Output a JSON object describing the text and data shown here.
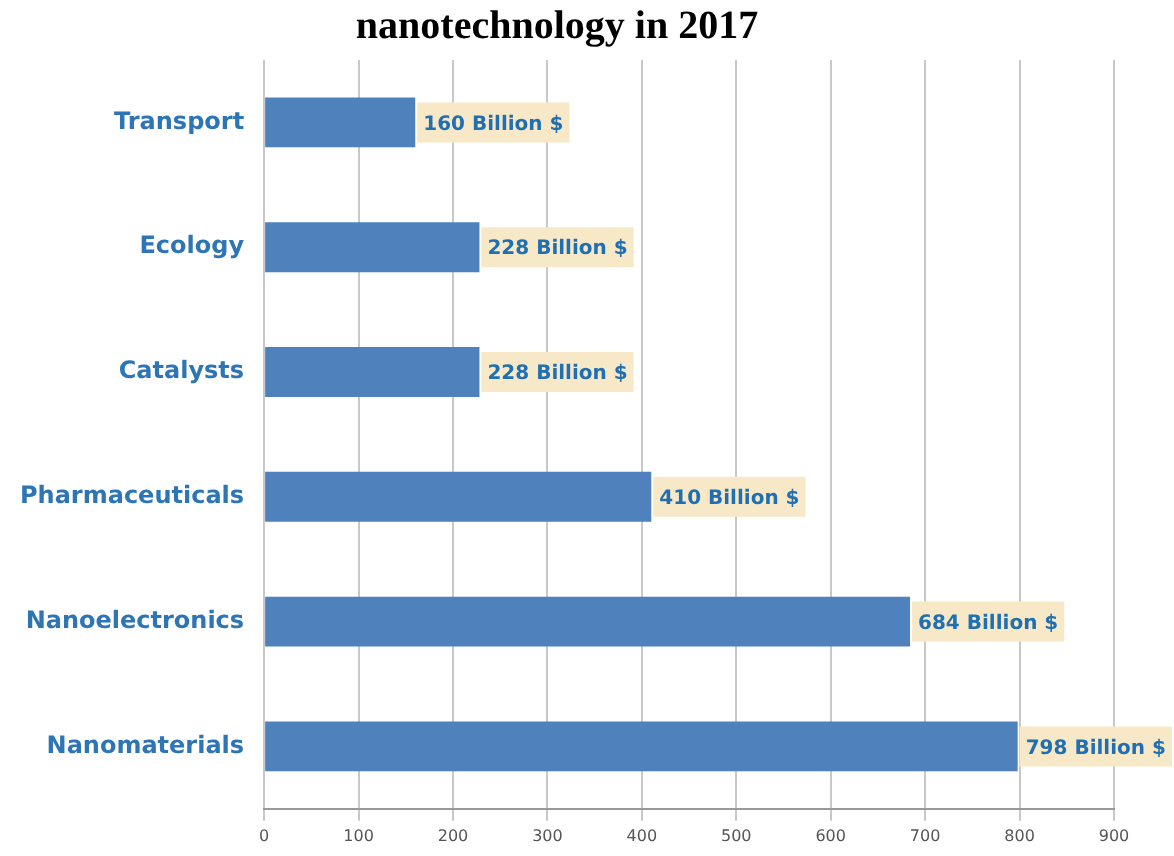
{
  "chart_data": {
    "type": "bar",
    "orientation": "horizontal",
    "title": "nanotechnology in 2017",
    "categories": [
      "Transport",
      "Ecology",
      "Catalysts",
      "Pharmaceuticals",
      "Nanoelectronics",
      "Nanomaterials"
    ],
    "values": [
      160,
      228,
      228,
      410,
      684,
      798
    ],
    "value_labels": [
      "160 Billion $",
      "228 Billion $",
      "228 Billion $",
      "410 Billion $",
      "684 Billion $",
      "798 Billion $"
    ],
    "color": "#4f81bd",
    "xlim": [
      0,
      900
    ],
    "xticks": [
      0,
      100,
      200,
      300,
      400,
      500,
      600,
      700,
      800,
      900
    ],
    "grid": "x",
    "legend": false
  }
}
